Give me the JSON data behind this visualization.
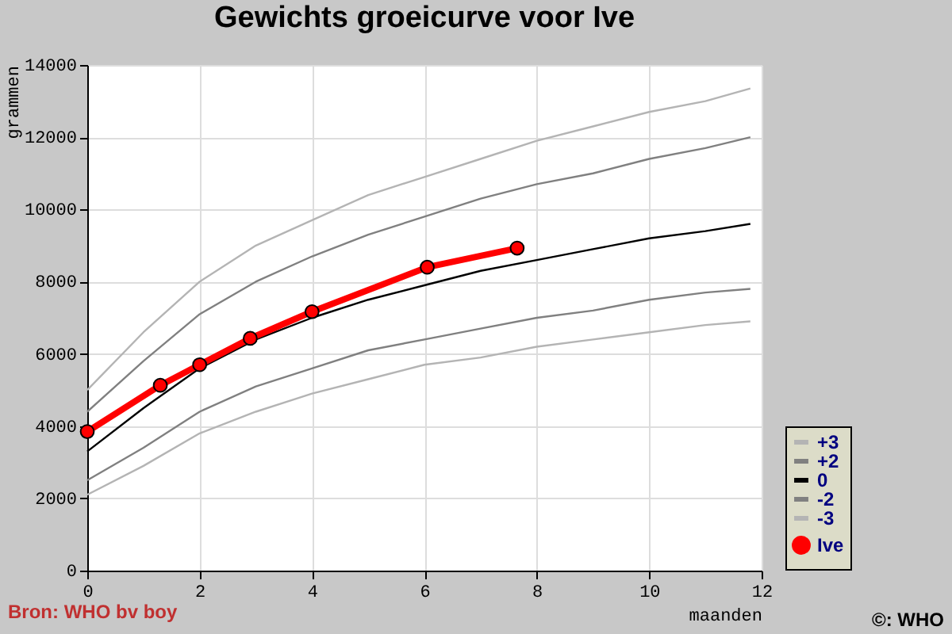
{
  "chart_data": {
    "type": "line",
    "title": "Gewichts groeicurve voor Ive",
    "xlabel": "maanden",
    "ylabel": "grammen",
    "xlim": [
      0,
      12
    ],
    "xticks": [
      0,
      2,
      4,
      6,
      8,
      10,
      12
    ],
    "ylim": [
      0,
      14000
    ],
    "yticks": [
      0,
      2000,
      4000,
      6000,
      8000,
      10000,
      12000,
      14000
    ],
    "grid": true,
    "legend": "bottom right",
    "line_style": "solid",
    "annotations": [
      "Bron: WHO bv boy",
      "©: WHO"
    ],
    "series": [
      {
        "name": "+3",
        "color": "#b4b4b4",
        "marker": "none",
        "x": [
          0,
          1,
          2,
          3,
          4,
          5,
          6,
          7,
          8,
          9,
          10,
          11,
          11.8
        ],
        "values": [
          5000,
          6600,
          8000,
          9000,
          9700,
          10400,
          10900,
          11400,
          11900,
          12300,
          12700,
          13000,
          13350
        ]
      },
      {
        "name": "+2",
        "color": "#808080",
        "marker": "none",
        "x": [
          0,
          1,
          2,
          3,
          4,
          5,
          6,
          7,
          8,
          9,
          10,
          11,
          11.8
        ],
        "values": [
          4400,
          5800,
          7100,
          8000,
          8700,
          9300,
          9800,
          10300,
          10700,
          11000,
          11400,
          11700,
          12000
        ]
      },
      {
        "name": "0",
        "color": "#000000",
        "marker": "none",
        "x": [
          0,
          1,
          2,
          3,
          4,
          5,
          6,
          7,
          8,
          9,
          10,
          11,
          11.8
        ],
        "values": [
          3300,
          4500,
          5600,
          6400,
          7000,
          7500,
          7900,
          8300,
          8600,
          8900,
          9200,
          9400,
          9600
        ]
      },
      {
        "name": "-2",
        "color": "#808080",
        "marker": "none",
        "x": [
          0,
          1,
          2,
          3,
          4,
          5,
          6,
          7,
          8,
          9,
          10,
          11,
          11.8
        ],
        "values": [
          2500,
          3400,
          4400,
          5100,
          5600,
          6100,
          6400,
          6700,
          7000,
          7200,
          7500,
          7700,
          7800
        ]
      },
      {
        "name": "-3",
        "color": "#b4b4b4",
        "marker": "none",
        "x": [
          0,
          1,
          2,
          3,
          4,
          5,
          6,
          7,
          8,
          9,
          10,
          11,
          11.8
        ],
        "values": [
          2100,
          2900,
          3800,
          4400,
          4900,
          5300,
          5700,
          5900,
          6200,
          6400,
          6600,
          6800,
          6900
        ]
      },
      {
        "name": "Ive",
        "color": "#ff0000",
        "marker": "circle",
        "x": [
          0,
          1.3,
          2,
          2.9,
          4,
          6.05,
          7.65
        ],
        "values": [
          3850,
          5130,
          5700,
          6430,
          7170,
          8400,
          8930
        ]
      }
    ]
  }
}
